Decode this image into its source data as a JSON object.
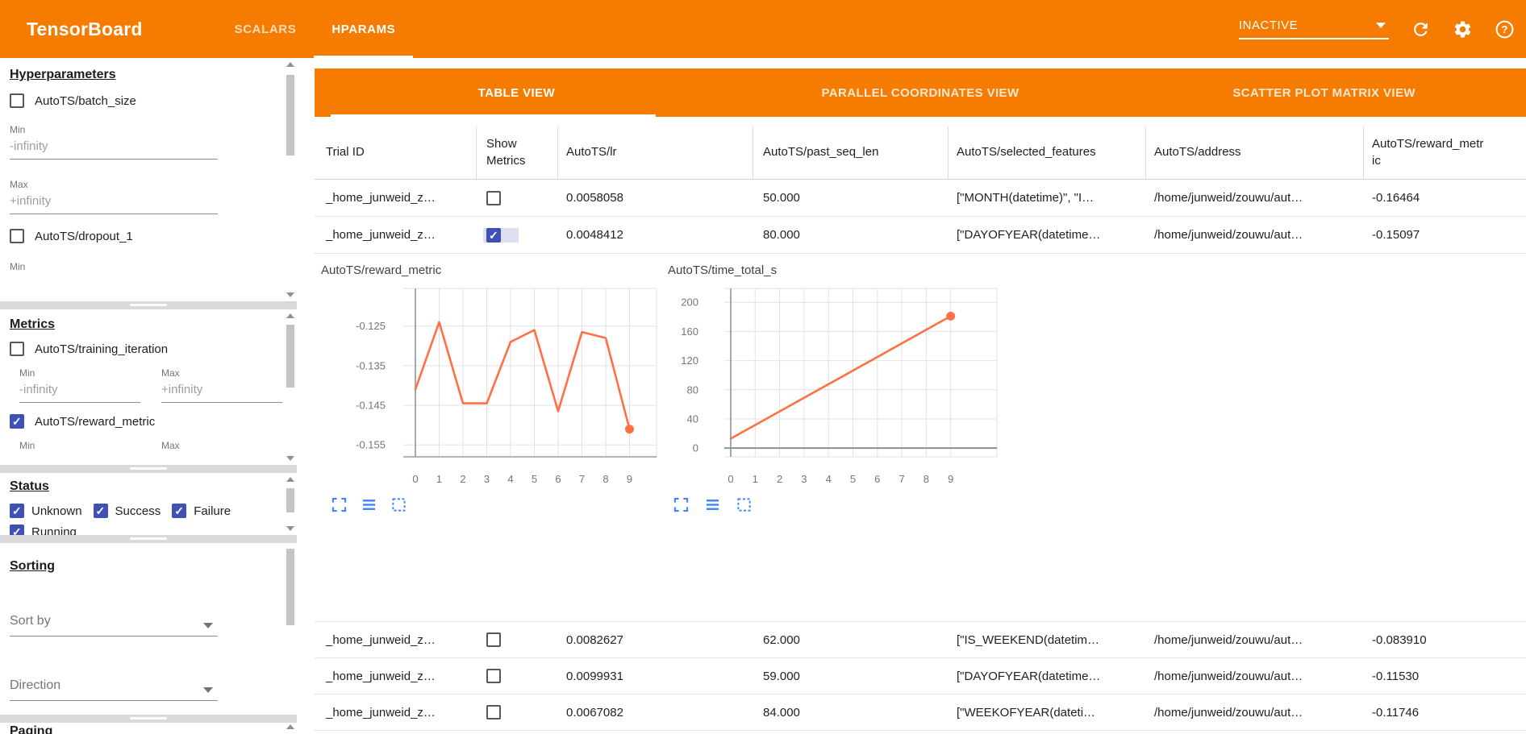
{
  "topbar": {
    "title": "TensorBoard",
    "nav_tabs": [
      {
        "label": "SCALARS",
        "active": false
      },
      {
        "label": "HPARAMS",
        "active": true
      }
    ],
    "run_status_dropdown": {
      "value": "INACTIVE"
    },
    "icon_names": [
      "refresh-icon",
      "gear-icon",
      "help-icon"
    ]
  },
  "sidebar": {
    "hyperparameters": {
      "title": "Hyperparameters",
      "items": [
        {
          "label": "AutoTS/batch_size",
          "checked": false
        },
        {
          "label": "AutoTS/dropout_1",
          "checked": false
        }
      ],
      "min_label": "Min",
      "max_label": "Max",
      "min_placeholder": "-infinity",
      "max_placeholder": "+infinity",
      "trailing_label": "Min"
    },
    "metrics": {
      "title": "Metrics",
      "items": [
        {
          "label": "AutoTS/training_iteration",
          "checked": false
        },
        {
          "label": "AutoTS/reward_metric",
          "checked": true
        }
      ],
      "min_label": "Min",
      "max_label": "Max",
      "min_placeholder": "-infinity",
      "max_placeholder": "+infinity",
      "trailing_min_label": "Min",
      "trailing_max_label": "Max"
    },
    "status": {
      "title": "Status",
      "items": [
        {
          "label": "Unknown",
          "checked": true
        },
        {
          "label": "Success",
          "checked": true
        },
        {
          "label": "Failure",
          "checked": true
        },
        {
          "label": "Running",
          "checked": true
        }
      ]
    },
    "sorting": {
      "title": "Sorting",
      "sort_by_placeholder": "Sort by",
      "direction_placeholder": "Direction"
    },
    "paging": {
      "title": "Paging"
    }
  },
  "main": {
    "view_tabs": [
      {
        "label": "TABLE VIEW",
        "active": true
      },
      {
        "label": "PARALLEL COORDINATES VIEW",
        "active": false
      },
      {
        "label": "SCATTER PLOT MATRIX VIEW",
        "active": false
      }
    ],
    "table": {
      "columns": [
        "Trial ID",
        "Show Metrics",
        "AutoTS/lr",
        "AutoTS/past_seq_len",
        "AutoTS/selected_features",
        "AutoTS/address",
        "AutoTS/reward_metric"
      ],
      "rows": [
        {
          "trial_id": "_home_junweid_z…",
          "show_metrics": false,
          "lr": "0.0058058",
          "past_seq_len": "50.000",
          "selected_features": "[\"MONTH(datetime)\", \"I…",
          "address": "/home/junweid/zouwu/aut…",
          "reward_metric": "-0.16464"
        },
        {
          "trial_id": "_home_junweid_z…",
          "show_metrics": true,
          "lr": "0.0048412",
          "past_seq_len": "80.000",
          "selected_features": "[\"DAYOFYEAR(datetime…",
          "address": "/home/junweid/zouwu/aut…",
          "reward_metric": "-0.15097"
        },
        {
          "trial_id": "_home_junweid_z…",
          "show_metrics": false,
          "lr": "0.0082627",
          "past_seq_len": "62.000",
          "selected_features": "[\"IS_WEEKEND(datetim…",
          "address": "/home/junweid/zouwu/aut…",
          "reward_metric": "-0.083910"
        },
        {
          "trial_id": "_home_junweid_z…",
          "show_metrics": false,
          "lr": "0.0099931",
          "past_seq_len": "59.000",
          "selected_features": "[\"DAYOFYEAR(datetime…",
          "address": "/home/junweid/zouwu/aut…",
          "reward_metric": "-0.11530"
        },
        {
          "trial_id": "_home_junweid_z…",
          "show_metrics": false,
          "lr": "0.0067082",
          "past_seq_len": "84.000",
          "selected_features": "[\"WEEKOFYEAR(dateti…",
          "address": "/home/junweid/zouwu/aut…",
          "reward_metric": "-0.11746"
        }
      ]
    }
  },
  "chart_data": [
    {
      "type": "line",
      "title": "AutoTS/reward_metric",
      "x": [
        0,
        1,
        2,
        3,
        4,
        5,
        6,
        7,
        8,
        9
      ],
      "y": [
        -0.141,
        -0.124,
        -0.1445,
        -0.1445,
        -0.129,
        -0.126,
        -0.1465,
        -0.1265,
        -0.128,
        -0.151
      ],
      "xticks": [
        0,
        1,
        2,
        3,
        4,
        5,
        6,
        7,
        8,
        9
      ],
      "ytick_values": [
        -0.125,
        -0.135,
        -0.145,
        -0.155
      ],
      "ytick_labels": [
        "-0.125",
        "-0.135",
        "-0.145",
        "-0.155"
      ],
      "ylim": [
        -0.158,
        -0.1155
      ],
      "xlabel": "",
      "ylabel": "",
      "grid": true,
      "line_color": "#ff7043",
      "end_marker": true
    },
    {
      "type": "line",
      "title": "AutoTS/time_total_s",
      "x": [
        0,
        9
      ],
      "y": [
        13,
        181
      ],
      "xticks": [
        0,
        1,
        2,
        3,
        4,
        5,
        6,
        7,
        8,
        9
      ],
      "ytick_values": [
        200,
        160,
        120,
        80,
        40,
        0
      ],
      "ytick_labels": [
        "200",
        "160",
        "120",
        "80",
        "40",
        "0"
      ],
      "ylim": [
        -12,
        219
      ],
      "xlabel": "",
      "ylabel": "",
      "grid": true,
      "line_color": "#ff7043",
      "end_marker": true
    }
  ],
  "colors": {
    "accent_orange": "#f57c00",
    "checkbox_indigo": "#3f51b5",
    "chart_line": "#ff7043",
    "icon_blue": "#4285f4"
  }
}
